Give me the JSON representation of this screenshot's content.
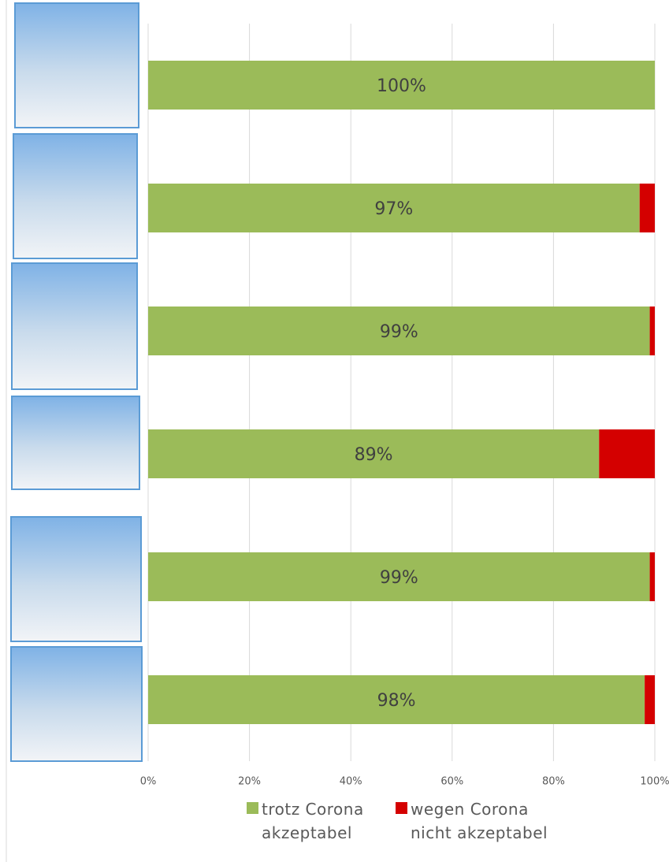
{
  "chart_data": {
    "type": "stacked-bar-horizontal",
    "categories": [
      null,
      null,
      null,
      null,
      null,
      null
    ],
    "series": [
      {
        "name": "trotz Corona akzeptabel",
        "color": "#9bbb59",
        "values": [
          100,
          97,
          99,
          89,
          99,
          98
        ],
        "value_labels": [
          "100%",
          "97%",
          "99%",
          "89%",
          "99%",
          "98%"
        ]
      },
      {
        "name": "wegen Corona nicht akzeptabel",
        "color": "#d40000",
        "values": [
          0,
          3,
          1,
          11,
          1,
          2
        ]
      }
    ],
    "xlim": [
      0,
      100
    ],
    "xticks": [
      {
        "value": 0,
        "label": "0%"
      },
      {
        "value": 20,
        "label": "20%"
      },
      {
        "value": 40,
        "label": "40%"
      },
      {
        "value": 60,
        "label": "60%"
      },
      {
        "value": 80,
        "label": "80%"
      },
      {
        "value": 100,
        "label": "100%"
      }
    ],
    "grid": true
  }
}
